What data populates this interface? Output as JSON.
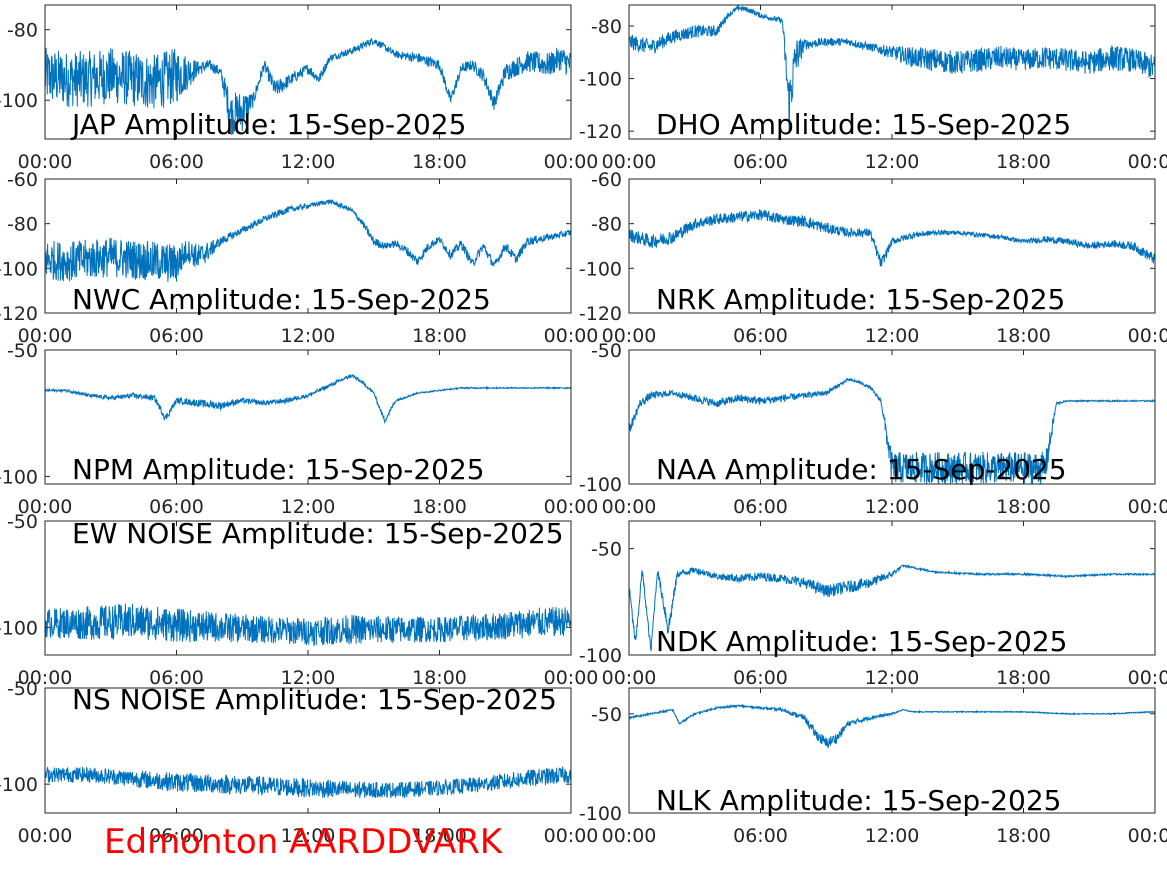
{
  "footer": "Edmonton AARDDVARK",
  "colors": {
    "line": "#0072BD",
    "axes": "#262626",
    "footer": "#FF0000"
  },
  "chart_data": [
    {
      "type": "line",
      "title": "JAP Amplitude: 15-Sep-2025",
      "xlim": [
        "00:00",
        "24:00"
      ],
      "xticks": [
        "00:00",
        "06:00",
        "12:00",
        "18:00",
        "00:00"
      ],
      "ylim": [
        -111,
        -73
      ],
      "yticks": [
        {
          "v": -80,
          "label": "-80"
        },
        {
          "v": -100,
          "label": "-100"
        }
      ],
      "series": [
        {
          "x": [
            0,
            1,
            2,
            3,
            4,
            5,
            6,
            7,
            7.5,
            8,
            8.5,
            9,
            9.5,
            10,
            10.5,
            11,
            11.5,
            12,
            12.5,
            13,
            13.5,
            14,
            15,
            16,
            17,
            17.5,
            18,
            18.5,
            19,
            19.5,
            20,
            20.5,
            21,
            22,
            23,
            23.5,
            24
          ],
          "y": [
            -93,
            -94,
            -94,
            -93,
            -94,
            -95,
            -93,
            -91,
            -90,
            -92,
            -104,
            -103,
            -100,
            -90,
            -97,
            -95,
            -93,
            -91,
            -94,
            -88,
            -87,
            -86,
            -83,
            -87,
            -88,
            -89,
            -90,
            -100,
            -91,
            -90,
            -93,
            -101,
            -92,
            -89,
            -90,
            -88,
            -90
          ],
          "noise": [
            16,
            16,
            16,
            16,
            16,
            16,
            16,
            4,
            3,
            3,
            12,
            12,
            4,
            3,
            5,
            4,
            3,
            3,
            3,
            2,
            2,
            2,
            2,
            2,
            3,
            3,
            3,
            3,
            3,
            3,
            4,
            4,
            5,
            6,
            7,
            7,
            8
          ]
        }
      ]
    },
    {
      "type": "line",
      "title": "DHO Amplitude: 15-Sep-2025",
      "xlim": [
        "00:00",
        "24:00"
      ],
      "xticks": [
        "00:00",
        "06:00",
        "12:00",
        "18:00",
        "00:00"
      ],
      "ylim": [
        -123,
        -72
      ],
      "yticks": [
        {
          "v": -80,
          "label": "-80"
        },
        {
          "v": -100,
          "label": "-100"
        },
        {
          "v": -120,
          "label": "-120"
        }
      ],
      "series": [
        {
          "x": [
            0,
            1,
            2,
            3,
            4,
            4.5,
            5,
            5.5,
            6,
            6.5,
            7,
            7.3,
            7.6,
            8,
            9,
            10,
            11,
            12,
            13,
            14,
            15,
            16,
            17,
            18,
            19,
            20,
            21,
            22,
            23,
            24
          ],
          "y": [
            -86,
            -88,
            -84,
            -82,
            -82,
            -76,
            -73,
            -74,
            -76,
            -77,
            -78,
            -110,
            -92,
            -87,
            -86,
            -86,
            -88,
            -90,
            -92,
            -93,
            -94,
            -93,
            -92,
            -93,
            -92,
            -93,
            -94,
            -92,
            -93,
            -96
          ],
          "noise": [
            6,
            6,
            5,
            5,
            4,
            2,
            2,
            2,
            2,
            2,
            2,
            22,
            16,
            4,
            3,
            3,
            3,
            5,
            8,
            9,
            9,
            9,
            9,
            8,
            9,
            9,
            9,
            10,
            9,
            10
          ]
        }
      ]
    },
    {
      "type": "line",
      "title": "NWC Amplitude: 15-Sep-2025",
      "xlim": [
        "00:00",
        "24:00"
      ],
      "xticks": [
        "00:00",
        "06:00",
        "12:00",
        "18:00",
        "00:00"
      ],
      "ylim": [
        -120,
        -60
      ],
      "yticks": [
        {
          "v": -60,
          "label": "-60"
        },
        {
          "v": -80,
          "label": "-80"
        },
        {
          "v": -100,
          "label": "-100"
        },
        {
          "v": -120,
          "label": "-120"
        }
      ],
      "series": [
        {
          "x": [
            0,
            1,
            2,
            3,
            4,
            5,
            6,
            6.5,
            7,
            7.5,
            8,
            9,
            10,
            11,
            12,
            13,
            14,
            14.5,
            15,
            15.5,
            16,
            16.5,
            17,
            17.5,
            18,
            18.5,
            19,
            19.5,
            20,
            20.5,
            21,
            21.5,
            22,
            23,
            24
          ],
          "y": [
            -96,
            -97,
            -96,
            -95,
            -96,
            -97,
            -98,
            -92,
            -95,
            -92,
            -88,
            -83,
            -78,
            -74,
            -72,
            -70,
            -74,
            -80,
            -88,
            -90,
            -89,
            -92,
            -97,
            -90,
            -87,
            -94,
            -89,
            -98,
            -90,
            -99,
            -90,
            -96,
            -88,
            -86,
            -84
          ],
          "noise": [
            18,
            18,
            18,
            18,
            18,
            18,
            18,
            10,
            12,
            8,
            4,
            3,
            3,
            3,
            2,
            2,
            2,
            3,
            4,
            3,
            3,
            4,
            4,
            4,
            3,
            4,
            4,
            4,
            4,
            4,
            4,
            4,
            4,
            3,
            3
          ]
        }
      ]
    },
    {
      "type": "line",
      "title": "NRK Amplitude: 15-Sep-2025",
      "xlim": [
        "00:00",
        "24:00"
      ],
      "xticks": [
        "00:00",
        "06:00",
        "12:00",
        "18:00",
        "00:00"
      ],
      "ylim": [
        -120,
        -60
      ],
      "yticks": [
        {
          "v": -60,
          "label": "-60"
        },
        {
          "v": -80,
          "label": "-80"
        },
        {
          "v": -100,
          "label": "-100"
        },
        {
          "v": -120,
          "label": "-120"
        }
      ],
      "series": [
        {
          "x": [
            0,
            1,
            2,
            3,
            4,
            5,
            6,
            7,
            8,
            9,
            10,
            11,
            11.5,
            12,
            13,
            14,
            15,
            16,
            17,
            18,
            19,
            20,
            21,
            22,
            23,
            24
          ],
          "y": [
            -85,
            -88,
            -86,
            -80,
            -78,
            -77,
            -76,
            -78,
            -79,
            -82,
            -84,
            -84,
            -98,
            -88,
            -85,
            -84,
            -84,
            -85,
            -86,
            -88,
            -87,
            -88,
            -90,
            -89,
            -90,
            -96
          ],
          "noise": [
            6,
            6,
            6,
            5,
            5,
            5,
            5,
            5,
            5,
            5,
            4,
            4,
            5,
            3,
            3,
            2,
            2,
            2,
            2,
            2,
            3,
            3,
            3,
            3,
            4,
            5
          ]
        }
      ]
    },
    {
      "type": "line",
      "title": "NPM Amplitude: 15-Sep-2025",
      "xlim": [
        "00:00",
        "24:00"
      ],
      "xticks": [
        "00:00",
        "06:00",
        "12:00",
        "18:00",
        "00:00"
      ],
      "ylim": [
        -103,
        -50
      ],
      "yticks": [
        {
          "v": -50,
          "label": "-50"
        },
        {
          "v": -100,
          "label": "-100"
        }
      ],
      "series": [
        {
          "x": [
            0,
            1,
            2,
            3,
            4,
            5,
            5.5,
            6,
            7,
            8,
            9,
            10,
            11,
            12,
            13,
            14,
            14.5,
            15,
            15.5,
            16,
            17,
            18,
            19,
            20,
            21,
            22,
            23,
            24
          ],
          "y": [
            -66,
            -66,
            -68,
            -69,
            -68,
            -69,
            -77,
            -70,
            -71,
            -72,
            -70,
            -71,
            -70,
            -68,
            -64,
            -60,
            -63,
            -67,
            -78,
            -70,
            -67,
            -66,
            -65,
            -65,
            -65,
            -65,
            -65,
            -65
          ],
          "noise": [
            1,
            1,
            1.5,
            1.5,
            2,
            2,
            3,
            2,
            3,
            3,
            2,
            2,
            2,
            1.5,
            1.5,
            1.5,
            1,
            1,
            2,
            1,
            0.5,
            0.5,
            0.5,
            0.5,
            0.5,
            0.5,
            0.5,
            0.5
          ]
        }
      ]
    },
    {
      "type": "line",
      "title": "NAA Amplitude: 15-Sep-2025",
      "xlim": [
        "00:00",
        "24:00"
      ],
      "xticks": [
        "00:00",
        "06:00",
        "12:00",
        "18:00",
        "00:00"
      ],
      "ylim": [
        -100,
        -50
      ],
      "yticks": [
        {
          "v": -50,
          "label": "-50"
        },
        {
          "v": -100,
          "label": "-100"
        }
      ],
      "series": [
        {
          "x": [
            0,
            0.5,
            1,
            2,
            3,
            4,
            5,
            6,
            7,
            8,
            9,
            10,
            10.5,
            11,
            11.5,
            12,
            13,
            14,
            15,
            16,
            17,
            18,
            19,
            19.5,
            20,
            21,
            22,
            23,
            24
          ],
          "y": [
            -80,
            -70,
            -67,
            -66,
            -68,
            -70,
            -68,
            -69,
            -68,
            -67,
            -66,
            -61,
            -62,
            -64,
            -69,
            -94,
            -94,
            -94,
            -94,
            -94,
            -94,
            -94,
            -94,
            -70,
            -69,
            -69,
            -69,
            -69,
            -69
          ],
          "noise": [
            4,
            3,
            3,
            2,
            3,
            3,
            3,
            3,
            3,
            2,
            2,
            1,
            1,
            1,
            2,
            12,
            12,
            12,
            12,
            12,
            12,
            12,
            12,
            1,
            0.5,
            0.5,
            0.5,
            0.5,
            0.5
          ]
        }
      ]
    },
    {
      "type": "line",
      "title": "EW NOISE Amplitude: 15-Sep-2025",
      "xlim": [
        "00:00",
        "24:00"
      ],
      "xticks": [
        "00:00",
        "06:00",
        "12:00",
        "18:00",
        "00:00"
      ],
      "ylim": [
        -113,
        -50
      ],
      "yticks": [
        {
          "v": -50,
          "label": "-50"
        },
        {
          "v": -100,
          "label": "-100"
        }
      ],
      "series": [
        {
          "x": [
            0,
            2,
            4,
            6,
            8,
            10,
            12,
            14,
            16,
            18,
            20,
            22,
            24
          ],
          "y": [
            -98,
            -98,
            -97,
            -99,
            -100,
            -101,
            -102,
            -101,
            -101,
            -101,
            -100,
            -98,
            -97
          ],
          "noise": [
            14,
            16,
            17,
            16,
            14,
            13,
            13,
            14,
            13,
            12,
            13,
            14,
            14
          ]
        }
      ]
    },
    {
      "type": "line",
      "title": "NDK Amplitude: 15-Sep-2025",
      "xlim": [
        "00:00",
        "24:00"
      ],
      "xticks": [
        "00:00",
        "06:00",
        "12:00",
        "18:00",
        "00:00"
      ],
      "ylim": [
        -100,
        -37
      ],
      "yticks": [
        {
          "v": -50,
          "label": "-50"
        },
        {
          "v": -100,
          "label": "-100"
        }
      ],
      "series": [
        {
          "x": [
            0,
            0.3,
            0.6,
            1,
            1.3,
            1.8,
            2.2,
            3,
            4,
            5,
            6,
            7,
            8,
            9,
            10,
            11,
            12,
            12.5,
            13,
            14,
            16,
            18,
            20,
            22,
            24
          ],
          "y": [
            -68,
            -95,
            -60,
            -98,
            -60,
            -88,
            -62,
            -60,
            -63,
            -64,
            -63,
            -64,
            -66,
            -70,
            -68,
            -66,
            -62,
            -58,
            -59,
            -61,
            -62,
            -62,
            -63,
            -62,
            -62
          ],
          "noise": [
            4,
            5,
            3,
            4,
            3,
            10,
            3,
            3,
            3,
            4,
            4,
            4,
            5,
            6,
            6,
            5,
            3,
            1,
            1,
            0.8,
            0.8,
            0.8,
            0.8,
            0.8,
            0.8
          ]
        }
      ]
    },
    {
      "type": "line",
      "title": "NS NOISE Amplitude: 15-Sep-2025",
      "xlim": [
        "00:00",
        "24:00"
      ],
      "xticks": [
        "00:00",
        "06:00",
        "12:00",
        "18:00",
        "00:00"
      ],
      "ylim": [
        -115,
        -50
      ],
      "yticks": [
        {
          "v": -50,
          "label": "-50"
        },
        {
          "v": -100,
          "label": "-100"
        }
      ],
      "series": [
        {
          "x": [
            0,
            2,
            4,
            6,
            8,
            10,
            12,
            14,
            16,
            18,
            20,
            22,
            24
          ],
          "y": [
            -95,
            -95,
            -97,
            -99,
            -100,
            -101,
            -102,
            -103,
            -103,
            -102,
            -100,
            -97,
            -95
          ],
          "noise": [
            8,
            8,
            9,
            10,
            10,
            10,
            10,
            9,
            8,
            8,
            8,
            9,
            9
          ]
        }
      ]
    },
    {
      "type": "line",
      "title": "NLK Amplitude: 15-Sep-2025",
      "xlim": [
        "00:00",
        "24:00"
      ],
      "xticks": [
        "00:00",
        "06:00",
        "12:00",
        "18:00",
        "00:00"
      ],
      "ylim": [
        -100,
        -37
      ],
      "yticks": [
        {
          "v": -50,
          "label": "-50"
        },
        {
          "v": -100,
          "label": "-100"
        }
      ],
      "series": [
        {
          "x": [
            0,
            1,
            2,
            2.3,
            3,
            4,
            5,
            6,
            7,
            8,
            8.5,
            9,
            9.5,
            10,
            11,
            12,
            12.5,
            13,
            14,
            16,
            18,
            20,
            22,
            24
          ],
          "y": [
            -52,
            -50,
            -48,
            -55,
            -50,
            -47,
            -46,
            -47,
            -48,
            -52,
            -60,
            -65,
            -62,
            -55,
            -52,
            -50,
            -48,
            -49,
            -49,
            -49,
            -49,
            -50,
            -50,
            -49
          ],
          "noise": [
            1,
            1,
            1,
            1,
            1,
            1,
            1,
            1,
            1.5,
            3,
            5,
            6,
            5,
            3,
            2,
            1,
            0.5,
            0.5,
            0.5,
            0.5,
            0.5,
            0.5,
            0.5,
            0.5
          ]
        }
      ]
    }
  ]
}
